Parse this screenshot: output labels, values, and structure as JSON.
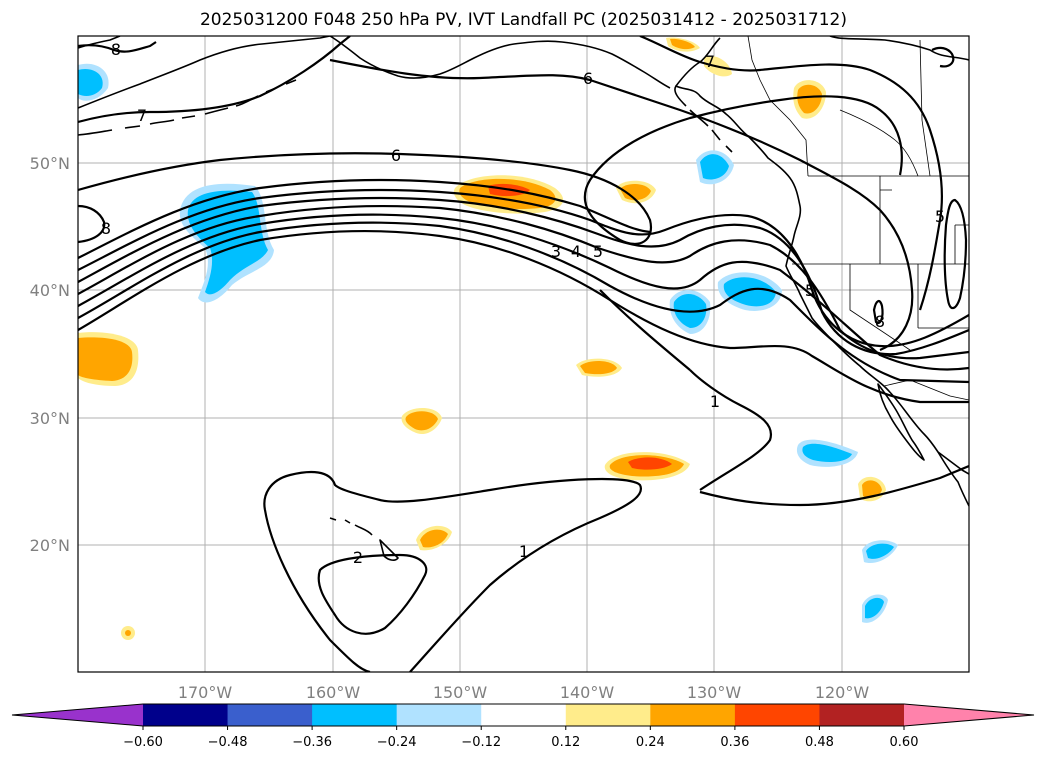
{
  "title": "2025031200 F048 250 hPa PV, IVT Landfall PC (2025031412 - 2025031712)",
  "longitude_ticks": [
    "170°W",
    "160°W",
    "150°W",
    "140°W",
    "130°W",
    "120°W"
  ],
  "latitude_ticks": [
    "50°N",
    "40°N",
    "30°N",
    "20°N"
  ],
  "colorbar": {
    "ticks": [
      "−0.60",
      "−0.48",
      "−0.36",
      "−0.24",
      "−0.12",
      "0.12",
      "0.24",
      "0.36",
      "0.48",
      "0.60"
    ],
    "colors": [
      "#9932cc",
      "#00008b",
      "#3a5fcd",
      "#00bfff",
      "#b0e2ff",
      "#ffffff",
      "#ffec8b",
      "#ffa500",
      "#ff4500",
      "#b22222",
      "#ff82ab"
    ]
  },
  "pv_contour_labels": [
    "1",
    "1",
    "2",
    "3",
    "4",
    "5",
    "5",
    "5",
    "6",
    "6",
    "7",
    "7",
    "8",
    "8",
    "8"
  ],
  "colors": {
    "contour": "#000000",
    "coastline": "#000000",
    "gridline": "#b0b0b0"
  }
}
